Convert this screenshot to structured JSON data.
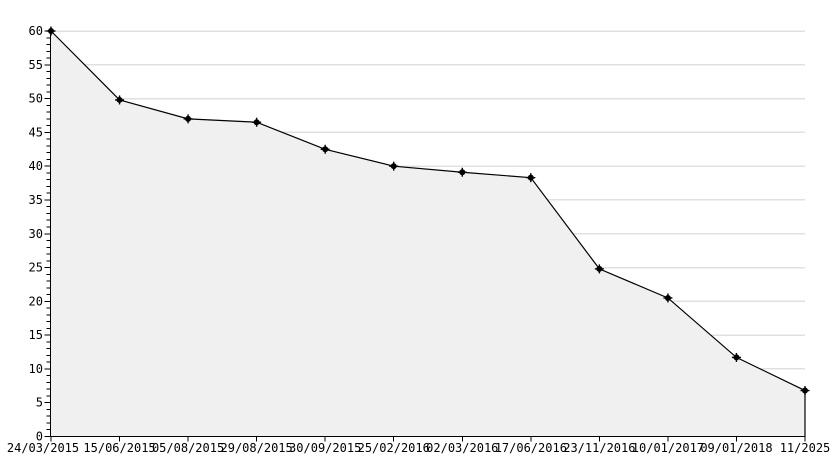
{
  "page": {
    "background_color": "#ffffff"
  },
  "chart_data": {
    "type": "area",
    "title": "",
    "subtitle": "",
    "xlabel": "",
    "ylabel": "",
    "categories": [
      "24/03/2015",
      "15/06/2015",
      "05/08/2015",
      "29/08/2015",
      "30/09/2015",
      "25/02/2016",
      "02/03/2016",
      "17/06/2016",
      "23/11/2016",
      "10/01/2017",
      "09/01/2018",
      "11/2025"
    ],
    "values": [
      60,
      49.8,
      47,
      46.5,
      42.5,
      40,
      39.1,
      38.3,
      24.8,
      20.5,
      11.7,
      6.8
    ],
    "ylim": [
      0,
      60
    ],
    "y_tick_step": 5,
    "y_minor_tick_step": 1,
    "y_tick_labels": [
      "0",
      "5",
      "10",
      "15",
      "20",
      "25",
      "30",
      "35",
      "40",
      "45",
      "50",
      "55",
      "60"
    ],
    "grid": "horizontal-major",
    "gridlines_hidden_under_fill": true,
    "legend": "none",
    "marker_style": "black-asterisk-dot",
    "colors": {
      "line": "#000000",
      "marker": "#000000",
      "area_fill": "#f0f0f0",
      "gridline": "#e0e0e0",
      "axis": "#000000",
      "label_text": "#000000",
      "background": "#ffffff"
    }
  }
}
